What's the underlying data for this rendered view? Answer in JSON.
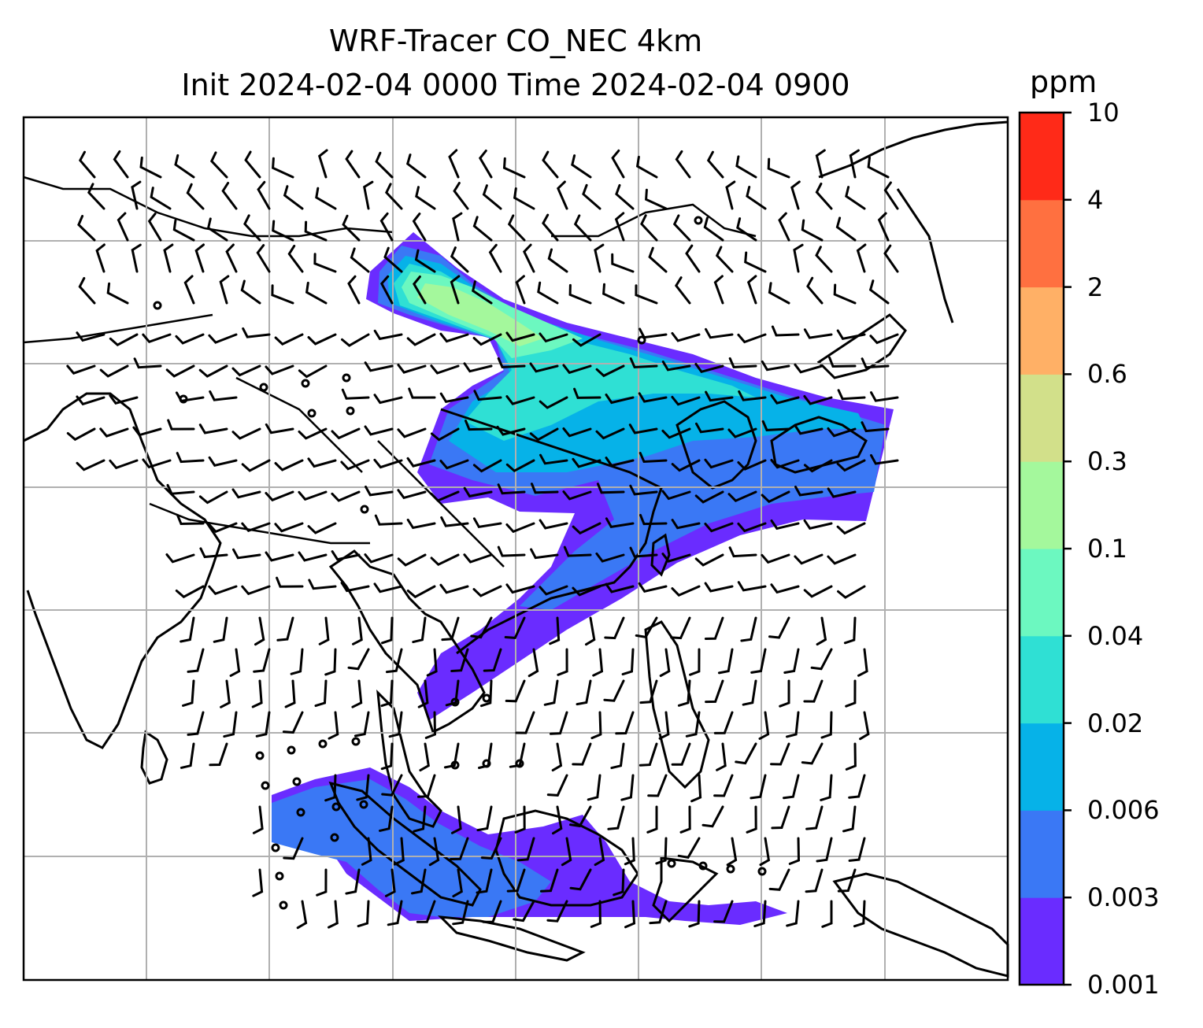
{
  "title": {
    "line1": "WRF-Tracer CO_NEC 4km",
    "line2": "Init 2024-02-04 0000 Time 2024-02-04 0900"
  },
  "colorbar": {
    "unit": "ppm",
    "levels": [
      "0.001",
      "0.003",
      "0.006",
      "0.02",
      "0.04",
      "0.1",
      "0.3",
      "0.6",
      "2",
      "4",
      "10"
    ],
    "colors": [
      "#6a2cff",
      "#3a78f5",
      "#06b2e8",
      "#2fe0d4",
      "#6cf8c0",
      "#a4f89c",
      "#d2e08a",
      "#ffb066",
      "#ff7040",
      "#ff2a18"
    ]
  },
  "map": {
    "gridlines": true,
    "overlay": "wind-barbs",
    "field": "CO tracer concentration"
  }
}
